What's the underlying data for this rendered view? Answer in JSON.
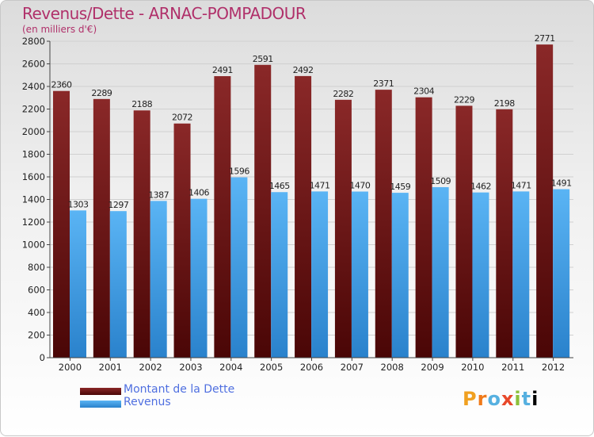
{
  "title": "Revenus/Dette - ARNAC-POMPADOUR",
  "subtitle": "(en milliers d'€)",
  "brand": "Proxiti",
  "colors": {
    "title": "#b0306a",
    "debt": "#7a1a1a",
    "revenue": "#3f9fe8",
    "legend_text": "#4f6fe0"
  },
  "chart_data": {
    "type": "bar",
    "categories": [
      "2000",
      "2001",
      "2002",
      "2003",
      "2004",
      "2005",
      "2006",
      "2007",
      "2008",
      "2009",
      "2010",
      "2011",
      "2012"
    ],
    "series": [
      {
        "name": "Montant de la Dette",
        "values": [
          2360,
          2289,
          2188,
          2072,
          2491,
          2591,
          2492,
          2282,
          2371,
          2304,
          2229,
          2198,
          2771
        ]
      },
      {
        "name": "Revenus",
        "values": [
          1303,
          1297,
          1387,
          1406,
          1596,
          1465,
          1471,
          1470,
          1459,
          1509,
          1462,
          1471,
          1491
        ]
      }
    ],
    "ylim": [
      0,
      2800
    ],
    "yticks": [
      0,
      200,
      400,
      600,
      800,
      1000,
      1200,
      1400,
      1600,
      1800,
      2000,
      2200,
      2400,
      2600,
      2800
    ],
    "grid": true,
    "legend_position": "bottom-left"
  }
}
